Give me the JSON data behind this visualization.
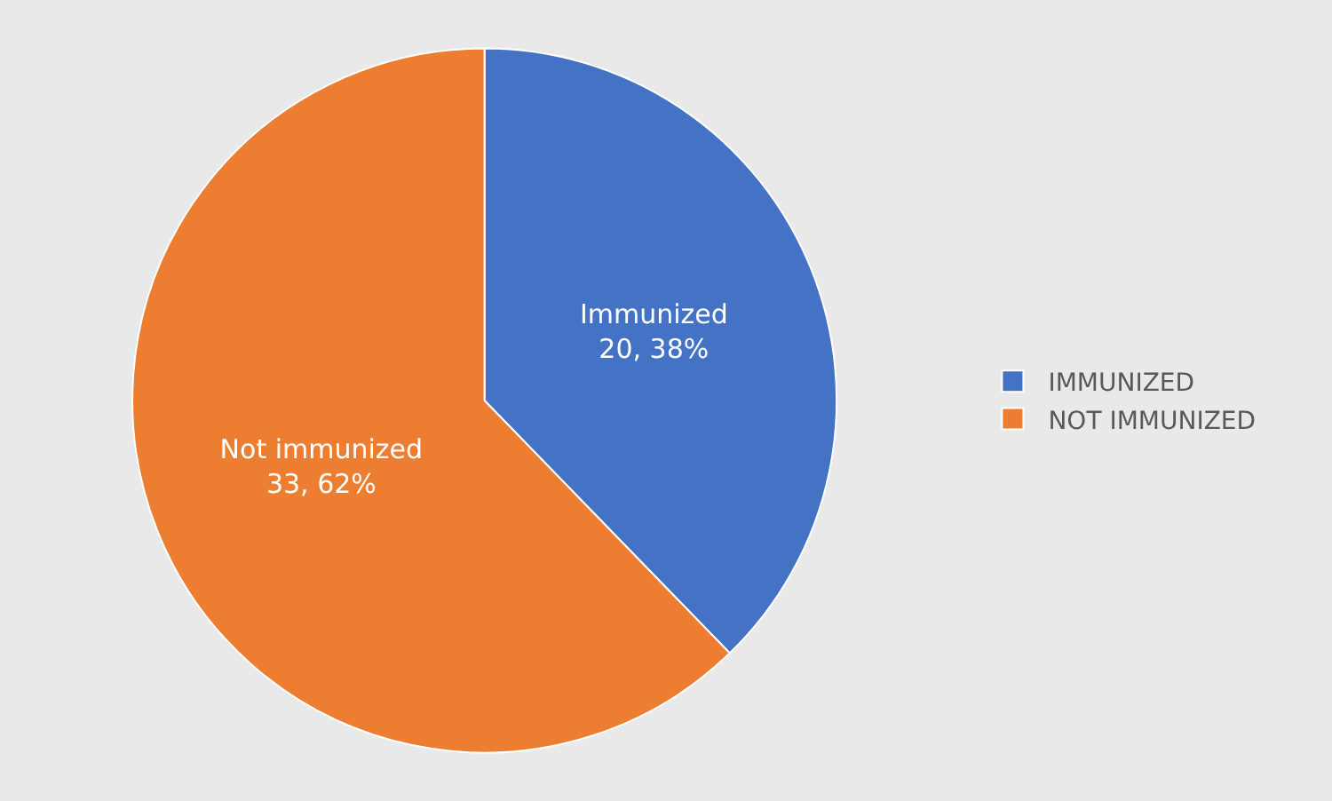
{
  "chart_data": {
    "type": "pie",
    "categories": [
      "IMMUNIZED",
      "NOT IMMUNIZED"
    ],
    "values": [
      20,
      33
    ],
    "colors": [
      "#4472c4",
      "#ed7d31"
    ],
    "value_labels": [
      "Immunized\n20, 38%",
      "Not immunized\n33, 62%"
    ],
    "legend": "right"
  }
}
